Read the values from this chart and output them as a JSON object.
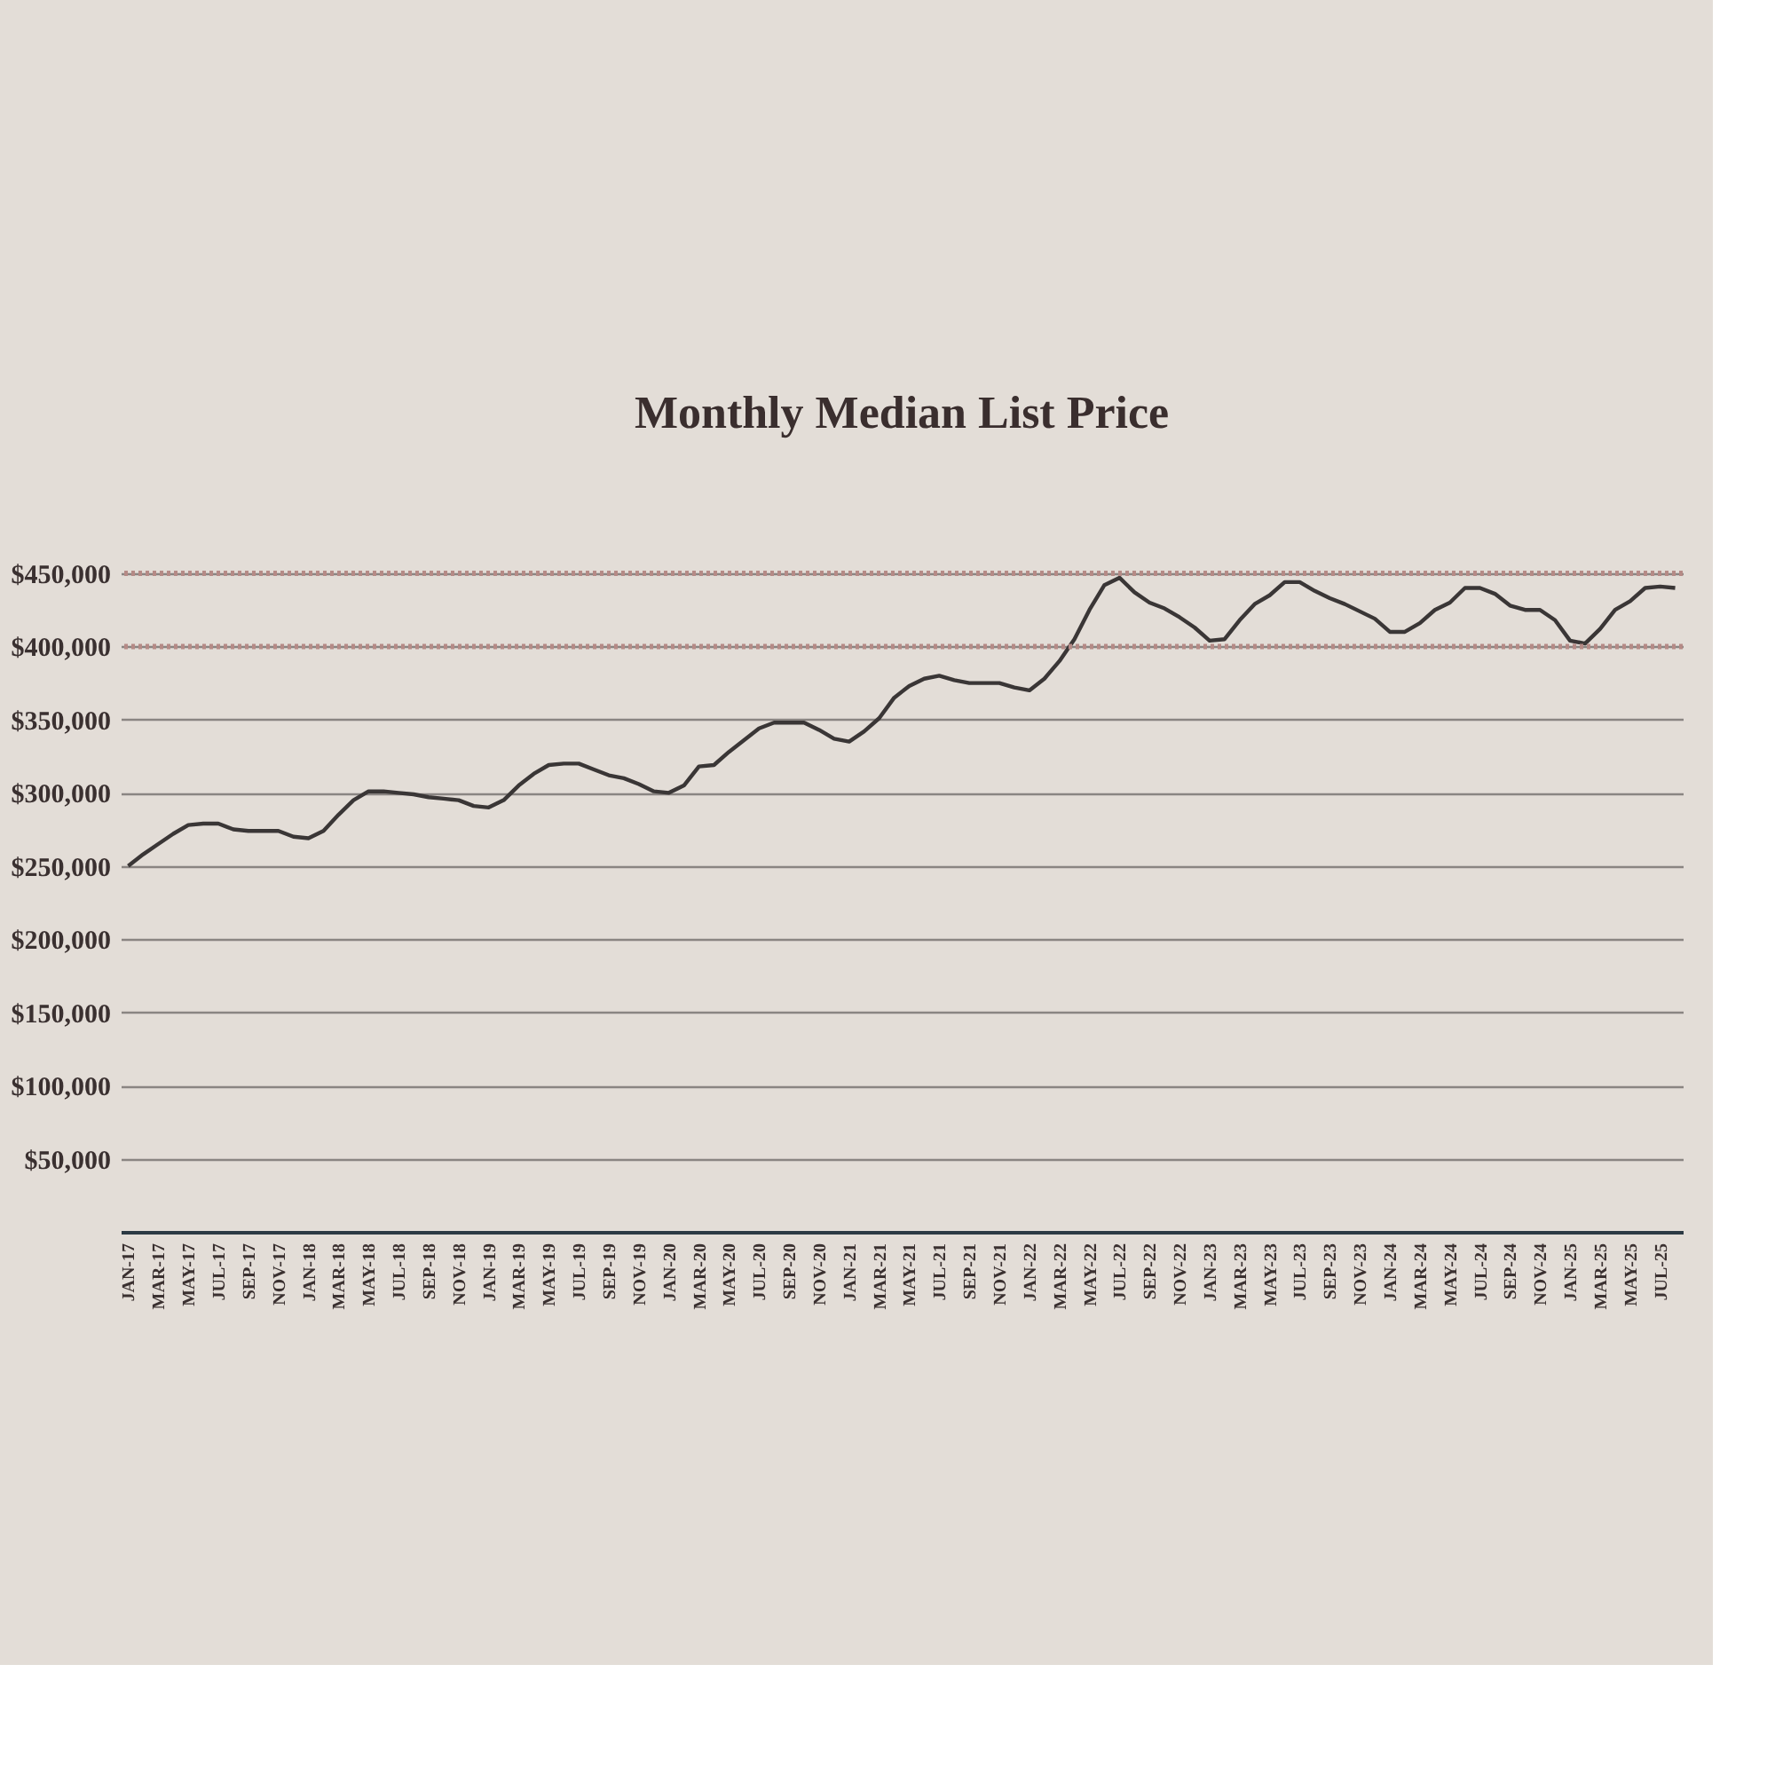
{
  "chart_data": {
    "type": "line",
    "title": "Monthly Median List Price",
    "categories": [
      "JAN-17",
      null,
      "MAR-17",
      null,
      "MAY-17",
      null,
      "JUL-17",
      null,
      "SEP-17",
      null,
      "NOV-17",
      null,
      "JAN-18",
      null,
      "MAR-18",
      null,
      "MAY-18",
      null,
      "JUL-18",
      null,
      "SEP-18",
      null,
      "NOV-18",
      null,
      "JAN-19",
      null,
      "MAR-19",
      null,
      "MAY-19",
      null,
      "JUL-19",
      null,
      "SEP-19",
      null,
      "NOV-19",
      null,
      "JAN-20",
      null,
      "MAR-20",
      null,
      "MAY-20",
      null,
      "JUL-20",
      null,
      "SEP-20",
      null,
      "NOV-20",
      null,
      "JAN-21",
      null,
      "MAR-21",
      null,
      "MAY-21",
      null,
      "JUL-21",
      null,
      "SEP-21",
      null,
      "NOV-21",
      null,
      "JAN-22",
      null,
      "MAR-22",
      null,
      "MAY-22",
      null,
      "JUL-22",
      null,
      "SEP-22",
      null,
      "NOV-22",
      null,
      "JAN-23",
      null,
      "MAR-23",
      null,
      "MAY-23",
      null,
      "JUL-23",
      null,
      "SEP-23",
      null,
      "NOV-23",
      null,
      "JAN-24",
      null,
      "MAR-24",
      null,
      "MAY-24",
      null,
      "JUL-24",
      null,
      "SEP-24",
      null,
      "NOV-24",
      null,
      "JAN-25",
      null,
      "MAR-25",
      null,
      "MAY-25",
      null,
      "JUL-25",
      null
    ],
    "series": [
      {
        "color": "#3a3636",
        "values": [
          250000,
          258000,
          265000,
          272000,
          278000,
          279000,
          279000,
          275000,
          274000,
          274000,
          274000,
          270000,
          269000,
          274000,
          285000,
          295000,
          301000,
          301000,
          300000,
          299000,
          297000,
          296000,
          295000,
          291000,
          290000,
          295000,
          305000,
          313000,
          319000,
          320000,
          320000,
          316000,
          312000,
          310000,
          306000,
          301000,
          300000,
          305000,
          318000,
          319000,
          328000,
          336000,
          344000,
          348000,
          348000,
          348000,
          343000,
          337000,
          335000,
          342000,
          351000,
          365000,
          373000,
          378000,
          380000,
          377000,
          375000,
          375000,
          375000,
          372000,
          370000,
          378000,
          390000,
          405000,
          425000,
          442000,
          447000,
          437000,
          430000,
          426000,
          420000,
          413000,
          404000,
          405000,
          418000,
          429000,
          435000,
          444000,
          444000,
          438000,
          433000,
          429000,
          424000,
          419000,
          410000,
          410000,
          416000,
          425000,
          430000,
          440000,
          440000,
          436000,
          428000,
          425000,
          425000,
          418000,
          404000,
          402000,
          412000,
          425000,
          431000,
          440000,
          441000,
          440000
        ]
      }
    ],
    "ylim": [
      0,
      450000
    ],
    "yticks": [
      {
        "value": 0,
        "label": null
      },
      {
        "value": 50000,
        "label": "$50,000"
      },
      {
        "value": 100000,
        "label": "$100,000"
      },
      {
        "value": 150000,
        "label": "$150,000"
      },
      {
        "value": 200000,
        "label": "$200,000"
      },
      {
        "value": 250000,
        "label": "$250,000"
      },
      {
        "value": 300000,
        "label": "$300,000"
      },
      {
        "value": 350000,
        "label": "$350,000"
      },
      {
        "value": 400000,
        "label": "$400,000"
      },
      {
        "value": 450000,
        "label": "$450,000"
      }
    ],
    "ref_lines": [
      {
        "axis": "y",
        "value": 400000,
        "label": null,
        "color": "#b58a86",
        "line_style": "dotted"
      },
      {
        "axis": "y",
        "value": 450000,
        "label": null,
        "color": "#b58a86",
        "line_style": "dotted"
      }
    ],
    "grid": "y",
    "marker": "none",
    "line_style": "solid"
  }
}
